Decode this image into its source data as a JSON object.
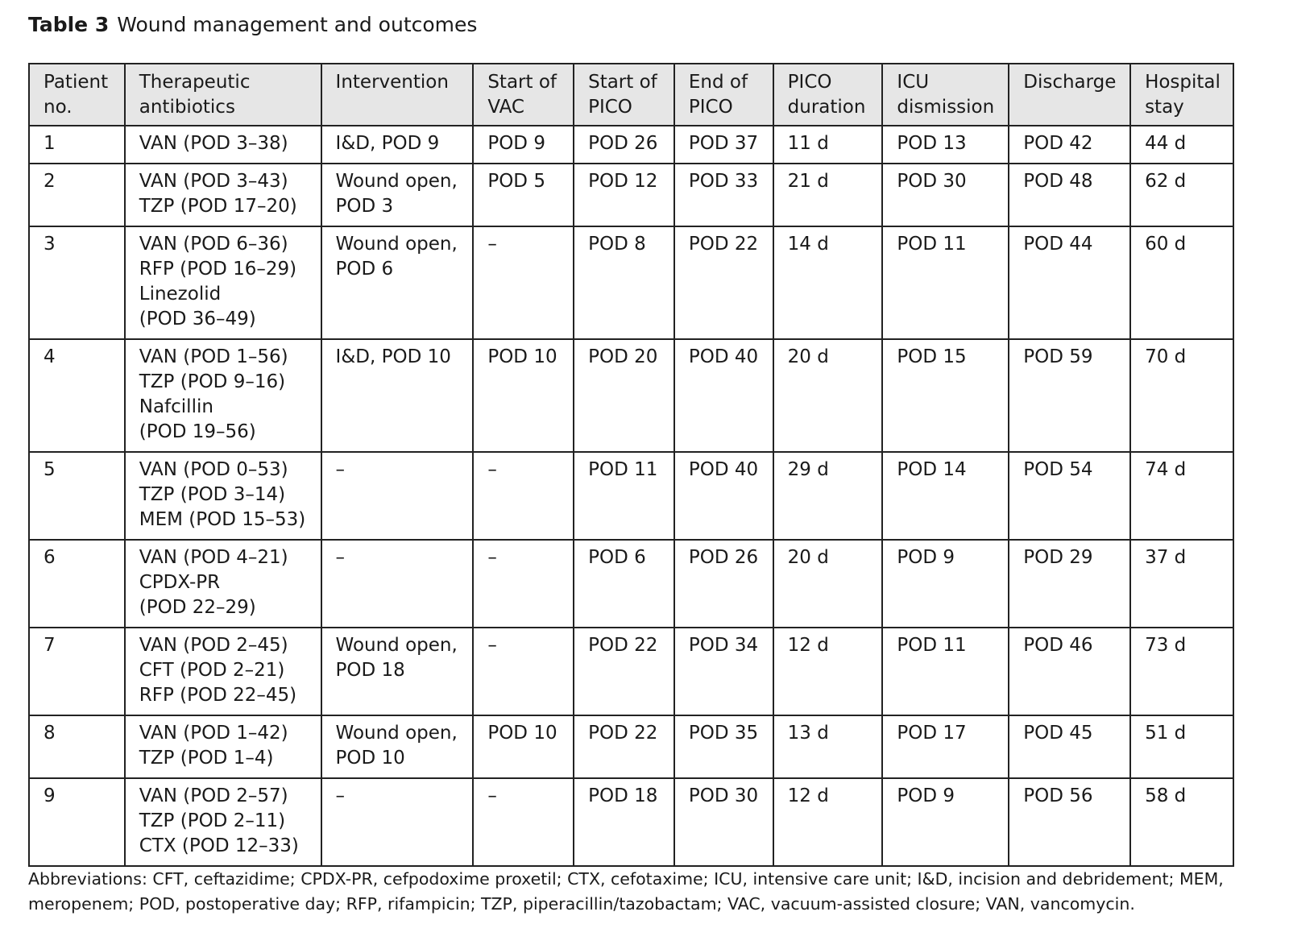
{
  "caption": {
    "label": "Table 3",
    "title": "Wound management and outcomes"
  },
  "columns": [
    [
      "Patient",
      "no."
    ],
    [
      "Therapeutic",
      "antibiotics"
    ],
    [
      "Intervention"
    ],
    [
      "Start of",
      "VAC"
    ],
    [
      "Start of",
      "PICO"
    ],
    [
      "End of",
      "PICO"
    ],
    [
      "PICO",
      "duration"
    ],
    [
      "ICU",
      "dismission"
    ],
    [
      "Discharge"
    ],
    [
      "Hospital",
      "stay"
    ]
  ],
  "rows": [
    [
      [
        "1"
      ],
      [
        "VAN (POD 3–38)"
      ],
      [
        "I&D, POD 9"
      ],
      [
        "POD 9"
      ],
      [
        "POD 26"
      ],
      [
        "POD 37"
      ],
      [
        "11 d"
      ],
      [
        "POD 13"
      ],
      [
        "POD 42"
      ],
      [
        "44 d"
      ]
    ],
    [
      [
        "2"
      ],
      [
        "VAN (POD 3–43)",
        "TZP (POD 17–20)"
      ],
      [
        "Wound open,",
        "POD 3"
      ],
      [
        "POD 5"
      ],
      [
        "POD 12"
      ],
      [
        "POD 33"
      ],
      [
        "21 d"
      ],
      [
        "POD 30"
      ],
      [
        "POD 48"
      ],
      [
        "62 d"
      ]
    ],
    [
      [
        "3"
      ],
      [
        "VAN (POD 6–36)",
        "RFP (POD 16–29)",
        "Linezolid",
        "(POD 36–49)"
      ],
      [
        "Wound open,",
        "POD 6"
      ],
      [
        "–"
      ],
      [
        "POD 8"
      ],
      [
        "POD 22"
      ],
      [
        "14 d"
      ],
      [
        "POD 11"
      ],
      [
        "POD 44"
      ],
      [
        "60 d"
      ]
    ],
    [
      [
        "4"
      ],
      [
        "VAN (POD 1–56)",
        "TZP (POD 9–16)",
        "Nafcillin",
        "(POD 19–56)"
      ],
      [
        "I&D, POD 10"
      ],
      [
        "POD 10"
      ],
      [
        "POD 20"
      ],
      [
        "POD 40"
      ],
      [
        "20 d"
      ],
      [
        "POD 15"
      ],
      [
        "POD 59"
      ],
      [
        "70 d"
      ]
    ],
    [
      [
        "5"
      ],
      [
        "VAN (POD 0–53)",
        "TZP (POD 3–14)",
        "MEM (POD 15–53)"
      ],
      [
        "–"
      ],
      [
        "–"
      ],
      [
        "POD 11"
      ],
      [
        "POD 40"
      ],
      [
        "29 d"
      ],
      [
        "POD 14"
      ],
      [
        "POD 54"
      ],
      [
        "74 d"
      ]
    ],
    [
      [
        "6"
      ],
      [
        "VAN (POD 4–21)",
        "CPDX-PR",
        "(POD 22–29)"
      ],
      [
        "–"
      ],
      [
        "–"
      ],
      [
        "POD 6"
      ],
      [
        "POD 26"
      ],
      [
        "20 d"
      ],
      [
        "POD 9"
      ],
      [
        "POD 29"
      ],
      [
        "37 d"
      ]
    ],
    [
      [
        "7"
      ],
      [
        "VAN (POD 2–45)",
        "CFT (POD 2–21)",
        "RFP (POD 22–45)"
      ],
      [
        "Wound open,",
        "POD 18"
      ],
      [
        "–"
      ],
      [
        "POD 22"
      ],
      [
        "POD 34"
      ],
      [
        "12 d"
      ],
      [
        "POD 11"
      ],
      [
        "POD 46"
      ],
      [
        "73 d"
      ]
    ],
    [
      [
        "8"
      ],
      [
        "VAN (POD 1–42)",
        "TZP (POD 1–4)"
      ],
      [
        "Wound open,",
        "POD 10"
      ],
      [
        "POD 10"
      ],
      [
        "POD 22"
      ],
      [
        "POD 35"
      ],
      [
        "13 d"
      ],
      [
        "POD 17"
      ],
      [
        "POD 45"
      ],
      [
        "51 d"
      ]
    ],
    [
      [
        "9"
      ],
      [
        "VAN (POD 2–57)",
        "TZP (POD 2–11)",
        "CTX (POD 12–33)"
      ],
      [
        "–"
      ],
      [
        "–"
      ],
      [
        "POD 18"
      ],
      [
        "POD 30"
      ],
      [
        "12 d"
      ],
      [
        "POD 9"
      ],
      [
        "POD 56"
      ],
      [
        "58 d"
      ]
    ]
  ],
  "footnote": "Abbreviations: CFT, ceftazidime; CPDX-PR, cefpodoxime proxetil; CTX, cefotaxime; ICU, intensive care unit; I&D, incision and debridement; MEM, meropenem; POD, postoperative day; RFP, rifampicin; TZP, piperacillin/tazobactam; VAC, vacuum-assisted closure; VAN, vancomycin."
}
